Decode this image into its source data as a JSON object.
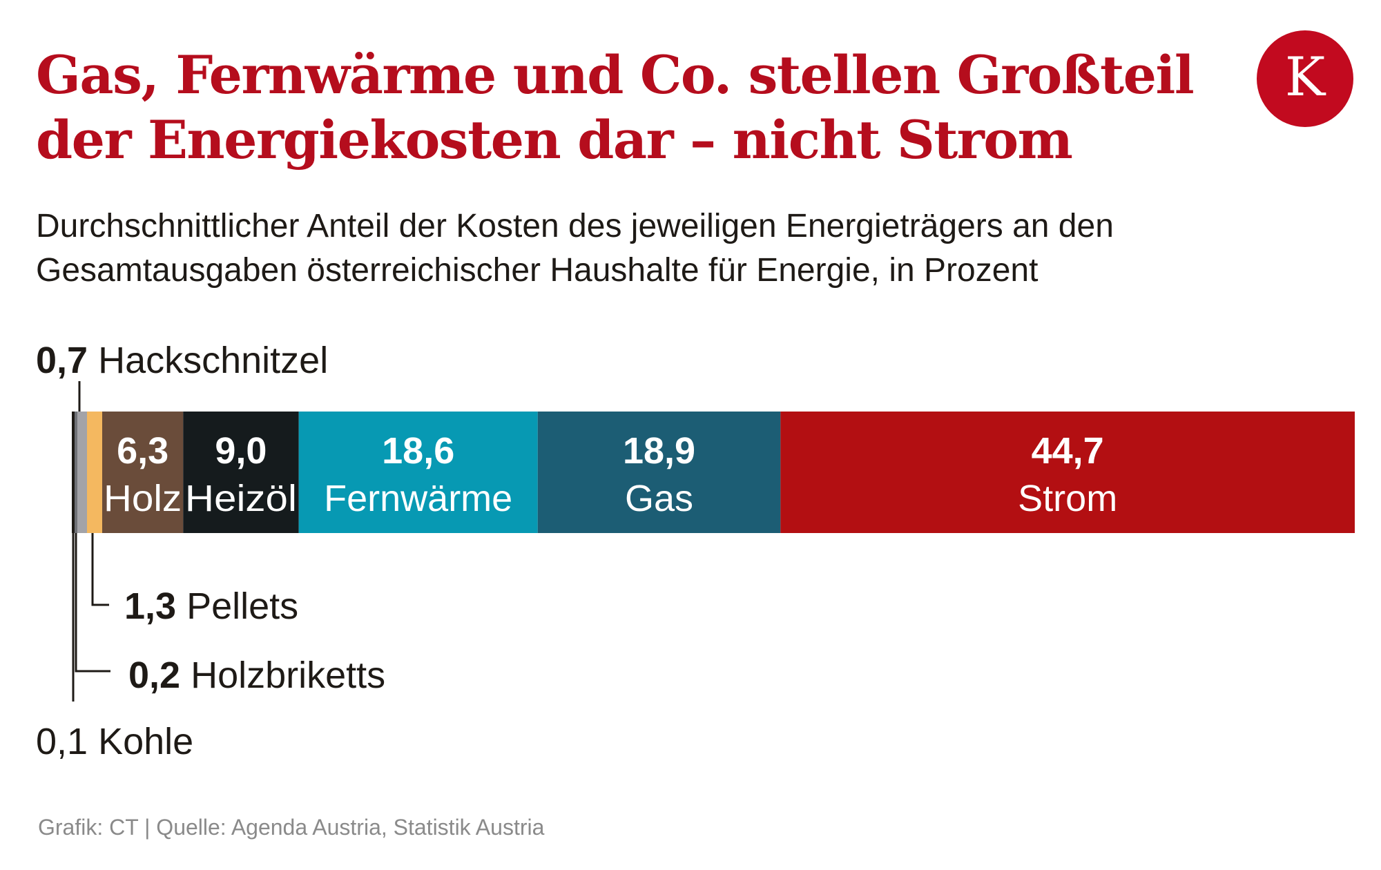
{
  "header": {
    "title_line1": "Gas, Fernwärme und Co. stellen Großteil",
    "title_line2": "der Energiekosten dar – nicht Strom",
    "subtitle_line1": "Durchschnittlicher Anteil der Kosten des jeweiligen Energieträgers an den",
    "subtitle_line2": "Gesamtausgaben österreichischer Haushalte für Energie, in Prozent",
    "logo_letter": "K"
  },
  "chart_data": {
    "type": "bar",
    "orientation": "horizontal-stacked",
    "unit": "Prozent",
    "total": 100,
    "segments": [
      {
        "name": "Kohle",
        "value": 0.1,
        "value_label": "0,1",
        "color": "#1e1a16",
        "label_position": "outside-below"
      },
      {
        "name": "Holzbriketts",
        "value": 0.2,
        "value_label": "0,2",
        "color": "#6f7176",
        "label_position": "outside-below"
      },
      {
        "name": "Hackschnitzel",
        "value": 0.7,
        "value_label": "0,7",
        "color": "#a3a3a8",
        "label_position": "outside-above"
      },
      {
        "name": "Pellets",
        "value": 1.3,
        "value_label": "1,3",
        "color": "#f4b860",
        "label_position": "outside-below"
      },
      {
        "name": "Holz",
        "value": 6.3,
        "value_label": "6,3",
        "color": "#6a4c3a",
        "label_position": "inside"
      },
      {
        "name": "Heizöl",
        "value": 9.0,
        "value_label": "9,0",
        "color": "#151b1d",
        "label_position": "inside"
      },
      {
        "name": "Fernwärme",
        "value": 18.6,
        "value_label": "18,6",
        "color": "#0799b3",
        "label_position": "inside"
      },
      {
        "name": "Gas",
        "value": 18.9,
        "value_label": "18,9",
        "color": "#1c5d74",
        "label_position": "inside"
      },
      {
        "name": "Strom",
        "value": 44.7,
        "value_label": "44,7",
        "color": "#b30f12",
        "label_position": "inside"
      }
    ]
  },
  "footer": {
    "source": "Grafik: CT | Quelle: Agenda Austria, Statistik Austria"
  }
}
